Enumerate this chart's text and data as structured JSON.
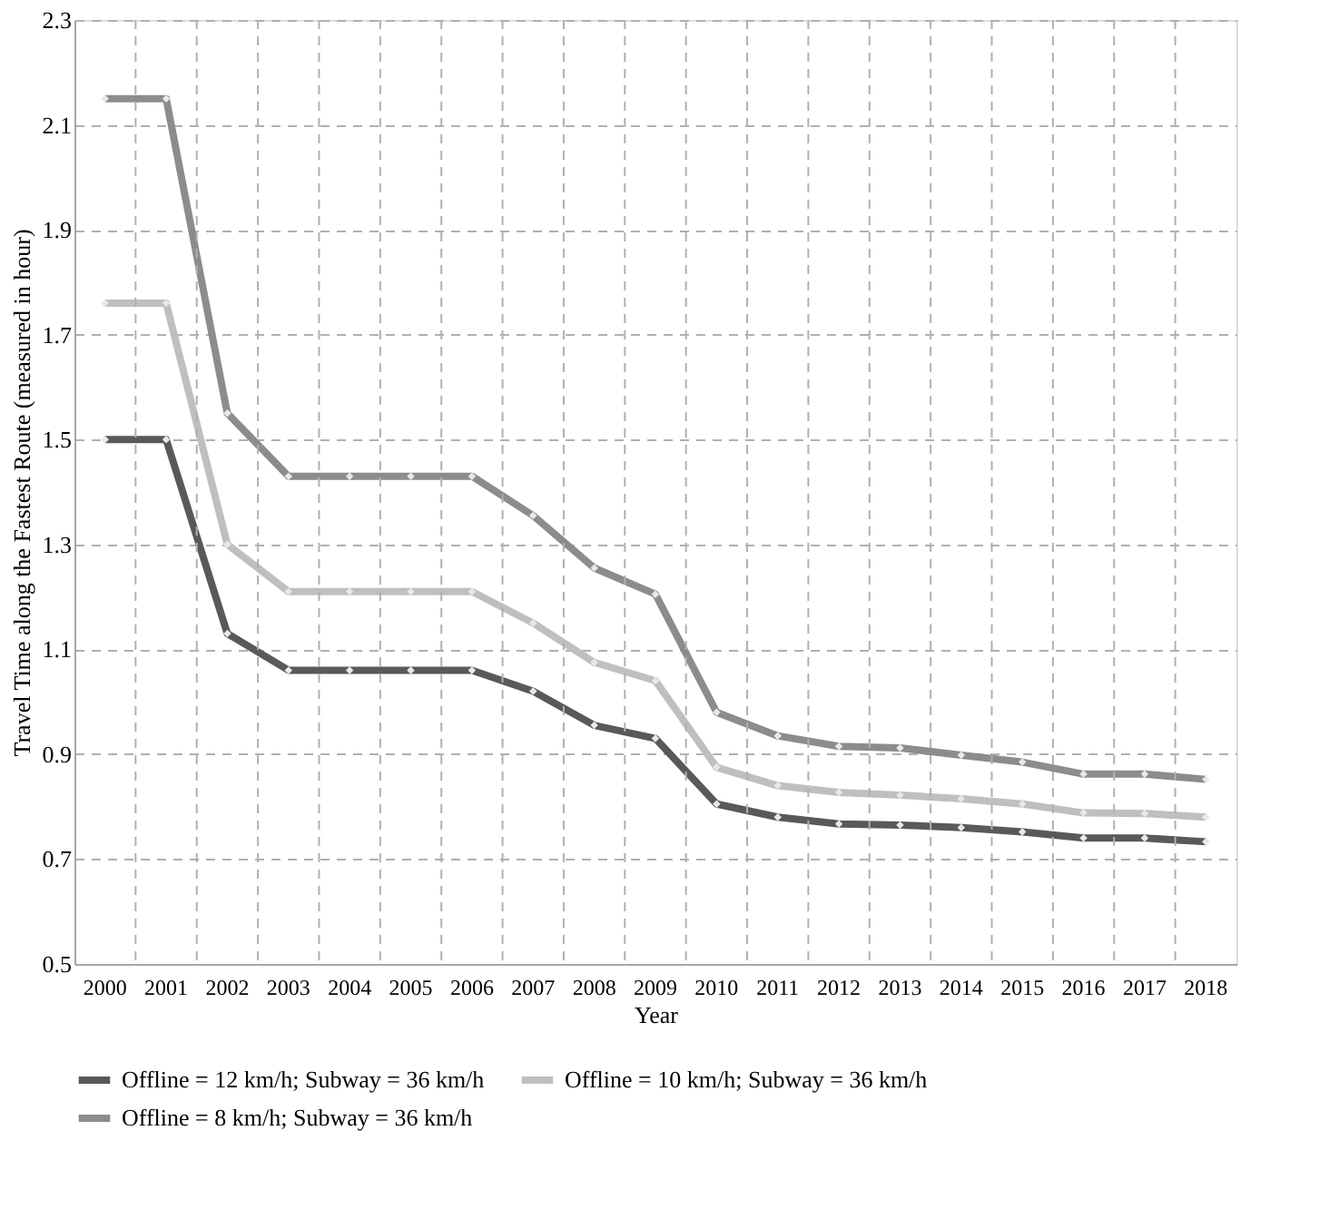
{
  "chart_data": {
    "type": "line",
    "xlabel": "Year",
    "ylabel": "Travel Time along the Fastest Route (measured in hour)",
    "categories": [
      "2000",
      "2001",
      "2002",
      "2003",
      "2004",
      "2005",
      "2006",
      "2007",
      "2008",
      "2009",
      "2010",
      "2011",
      "2012",
      "2013",
      "2014",
      "2015",
      "2016",
      "2017",
      "2018"
    ],
    "series": [
      {
        "name": "Offline = 12 km/h; Subway = 36 km/h",
        "color": "#595959",
        "values": [
          1.5,
          1.5,
          1.13,
          1.06,
          1.06,
          1.06,
          1.06,
          1.02,
          0.955,
          0.93,
          0.805,
          0.78,
          0.767,
          0.765,
          0.76,
          0.752,
          0.74,
          0.74,
          0.733
        ]
      },
      {
        "name": "Offline = 10 km/h; Subway = 36 km/h",
        "color": "#bfbfbf",
        "values": [
          1.76,
          1.76,
          1.3,
          1.21,
          1.21,
          1.21,
          1.21,
          1.15,
          1.075,
          1.04,
          0.875,
          0.84,
          0.827,
          0.822,
          0.815,
          0.805,
          0.788,
          0.787,
          0.78
        ]
      },
      {
        "name": "Offline =  8 km/h; Subway = 36 km/h",
        "color": "#8c8c8c",
        "values": [
          2.15,
          2.15,
          1.55,
          1.43,
          1.43,
          1.43,
          1.43,
          1.355,
          1.255,
          1.205,
          0.98,
          0.935,
          0.915,
          0.912,
          0.898,
          0.885,
          0.862,
          0.862,
          0.852
        ]
      }
    ],
    "ylim": [
      0.5,
      2.3
    ],
    "yticks": [
      0.5,
      0.7,
      0.9,
      1.1,
      1.3,
      1.5,
      1.7,
      1.9,
      2.1,
      2.3
    ],
    "grid": true,
    "legend": "bottom",
    "marker": "diamond",
    "line_style": "solid"
  }
}
